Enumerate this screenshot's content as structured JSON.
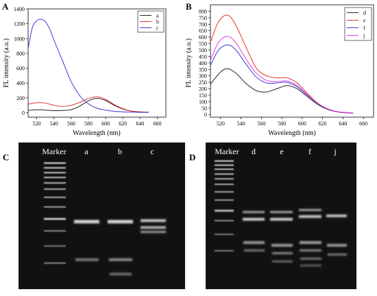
{
  "panels": {
    "A": "A",
    "B": "B",
    "C": "C",
    "D": "D"
  },
  "chart_data": [
    {
      "panel": "A",
      "type": "line",
      "xlabel": "Wavelength (nm)",
      "ylabel": "FL intensity (a.u.)",
      "xlim": [
        510,
        670
      ],
      "ylim": [
        -60,
        1400
      ],
      "xticks": [
        520,
        540,
        560,
        580,
        600,
        620,
        640,
        660
      ],
      "yticks": [
        0,
        200,
        400,
        600,
        800,
        1000,
        1200,
        1400
      ],
      "legend_position": "top-right",
      "series": [
        {
          "name": "a",
          "color": "#222222",
          "x": [
            510,
            520,
            530,
            540,
            550,
            560,
            570,
            580,
            590,
            600,
            610,
            620,
            630,
            640,
            650
          ],
          "y": [
            30,
            40,
            35,
            28,
            30,
            42,
            90,
            160,
            195,
            165,
            100,
            50,
            22,
            12,
            8
          ]
        },
        {
          "name": "b",
          "color": "#e8302a",
          "x": [
            510,
            520,
            530,
            540,
            550,
            560,
            570,
            580,
            590,
            600,
            610,
            620,
            630,
            640,
            650
          ],
          "y": [
            115,
            135,
            130,
            100,
            85,
            100,
            140,
            190,
            215,
            180,
            110,
            55,
            22,
            12,
            8
          ]
        },
        {
          "name": "c",
          "color": "#3a3ad8",
          "x": [
            510,
            515,
            520,
            525,
            530,
            535,
            540,
            550,
            560,
            570,
            580,
            590,
            600,
            610,
            620,
            630,
            640,
            650
          ],
          "y": [
            870,
            1150,
            1240,
            1260,
            1230,
            1130,
            980,
            700,
            420,
            230,
            120,
            60,
            35,
            20,
            12,
            8,
            5,
            5
          ]
        }
      ]
    },
    {
      "panel": "B",
      "type": "line",
      "xlabel": "Wavelength (nm)",
      "ylabel": "FL intensity (a.u.)",
      "xlim": [
        510,
        670
      ],
      "ylim": [
        -20,
        850
      ],
      "xticks": [
        520,
        540,
        560,
        580,
        600,
        620,
        640,
        660
      ],
      "yticks": [
        0,
        50,
        100,
        150,
        200,
        250,
        300,
        350,
        400,
        450,
        500,
        550,
        600,
        650,
        700,
        750,
        800
      ],
      "legend_position": "top-right",
      "series": [
        {
          "name": "d",
          "color": "#222222",
          "x": [
            510,
            520,
            527,
            535,
            545,
            555,
            565,
            575,
            585,
            595,
            605,
            615,
            625,
            635,
            650
          ],
          "y": [
            235,
            330,
            355,
            320,
            240,
            185,
            175,
            200,
            225,
            200,
            140,
            80,
            40,
            20,
            10
          ]
        },
        {
          "name": "e",
          "color": "#e8302a",
          "x": [
            510,
            518,
            527,
            535,
            545,
            555,
            565,
            575,
            585,
            595,
            605,
            615,
            625,
            635,
            650
          ],
          "y": [
            560,
            720,
            770,
            690,
            520,
            360,
            300,
            285,
            285,
            245,
            165,
            90,
            45,
            22,
            12
          ]
        },
        {
          "name": "f",
          "color": "#3a3ad8",
          "x": [
            510,
            518,
            527,
            535,
            545,
            555,
            565,
            575,
            585,
            595,
            605,
            615,
            625,
            635,
            650
          ],
          "y": [
            380,
            500,
            540,
            500,
            390,
            290,
            245,
            245,
            250,
            215,
            150,
            85,
            42,
            22,
            12
          ]
        },
        {
          "name": "j",
          "color": "#e040e0",
          "x": [
            510,
            518,
            527,
            535,
            545,
            555,
            565,
            575,
            585,
            595,
            605,
            615,
            625,
            635,
            650
          ],
          "y": [
            420,
            560,
            605,
            555,
            430,
            320,
            265,
            255,
            260,
            225,
            155,
            88,
            44,
            22,
            12
          ]
        }
      ]
    }
  ],
  "gel_C": {
    "lanes": [
      "Marker",
      "a",
      "b",
      "c"
    ]
  },
  "gel_D": {
    "lanes": [
      "Marker",
      "d",
      "e",
      "f",
      "j"
    ]
  }
}
